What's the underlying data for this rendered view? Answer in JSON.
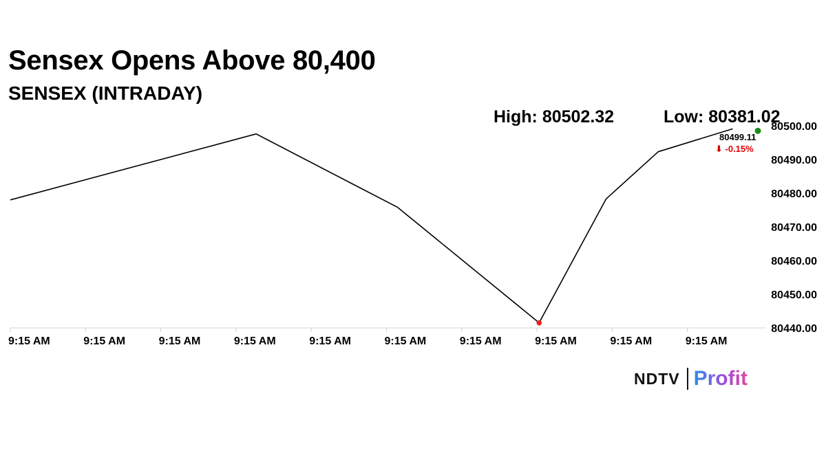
{
  "header": {
    "title": "Sensex Opens Above 80,400",
    "subtitle": "SENSEX (INTRADAY)",
    "high_text": "High: 80502.32",
    "low_text": "Low: 80381.02"
  },
  "last_quote": {
    "value_text": "80499.11",
    "change_text": "⬇ -0.15%"
  },
  "logo": {
    "brand": "NDTV",
    "product": "Profit"
  },
  "colors": {
    "line": "#000000",
    "low_marker": "#e8231e",
    "last_marker": "#1a8a1a",
    "change_negative": "#e00000"
  },
  "chart_data": {
    "type": "line",
    "title": "SENSEX (INTRADAY)",
    "xlabel": "",
    "ylabel": "",
    "x_tick_labels": [
      "9:15 AM",
      "9:15 AM",
      "9:15 AM",
      "9:15 AM",
      "9:15 AM",
      "9:15 AM",
      "9:15 AM",
      "9:15 AM",
      "9:15 AM",
      "9:15 AM"
    ],
    "y_tick_labels": [
      "80500.00",
      "80490.00",
      "80480.00",
      "80470.00",
      "80460.00",
      "80450.00",
      "80440.00"
    ],
    "ylim": [
      80440,
      80500
    ],
    "x_index_range": [
      0,
      10
    ],
    "x": [
      0,
      3.3,
      5.2,
      7.1,
      8.0,
      8.7,
      9.7
    ],
    "values": [
      80478.0,
      80497.6,
      80475.8,
      80441.5,
      80478.3,
      80492.3,
      80499.11
    ],
    "grid": false,
    "legend": "none",
    "markers": {
      "low_index": 3,
      "last_index": 6
    }
  }
}
